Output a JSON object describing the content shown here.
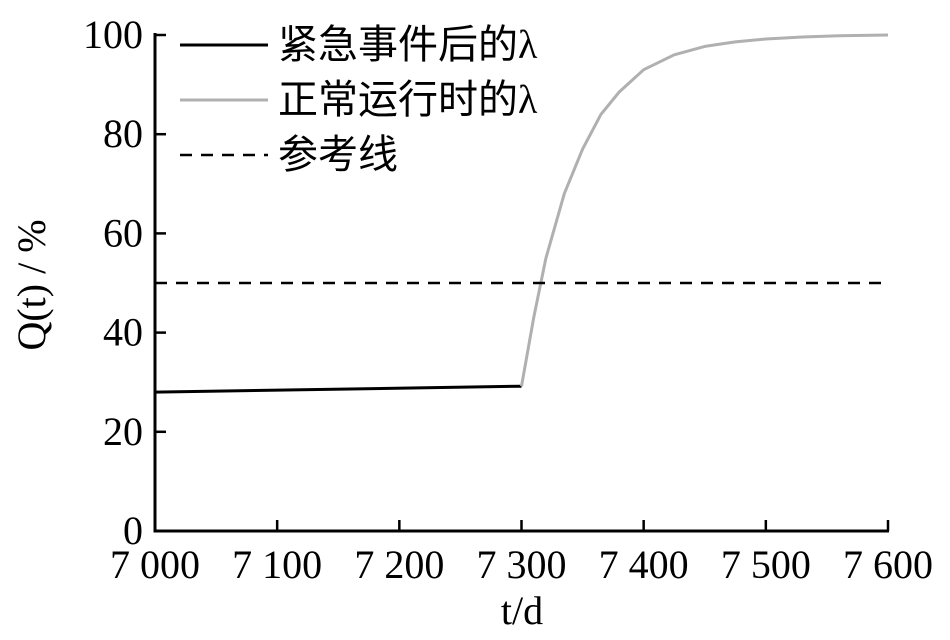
{
  "chart_data": {
    "type": "line",
    "xlabel": "t/d",
    "ylabel": "Q(t) / %",
    "xlim": [
      7000,
      7600
    ],
    "ylim": [
      0,
      100
    ],
    "x_ticks": [
      7000,
      7100,
      7200,
      7300,
      7400,
      7500,
      7600
    ],
    "x_tick_labels": [
      "7 000",
      "7 100",
      "7 200",
      "7 300",
      "7 400",
      "7 500",
      "7 600"
    ],
    "y_ticks": [
      0,
      20,
      40,
      60,
      80,
      100
    ],
    "y_tick_labels": [
      "0",
      "20",
      "40",
      "60",
      "80",
      "100"
    ],
    "grid": false,
    "legend_position": "top-left",
    "series": [
      {
        "name": "紧急事件后的λ",
        "color": "#000000",
        "style": "solid",
        "x": [
          7000,
          7300
        ],
        "y": [
          28,
          29.2
        ]
      },
      {
        "name": "正常运行时的λ",
        "color": "#b0b0b0",
        "style": "solid",
        "x": [
          7300,
          7310,
          7320,
          7335,
          7350,
          7365,
          7380,
          7400,
          7425,
          7450,
          7475,
          7500,
          7530,
          7560,
          7600
        ],
        "y": [
          29.2,
          43,
          55,
          68,
          77,
          84,
          88.5,
          93,
          96,
          97.7,
          98.6,
          99.2,
          99.6,
          99.85,
          100
        ]
      },
      {
        "name": "参考线",
        "color": "#000000",
        "style": "dashed",
        "x": [
          7000,
          7600
        ],
        "y": [
          50,
          50
        ]
      }
    ]
  }
}
